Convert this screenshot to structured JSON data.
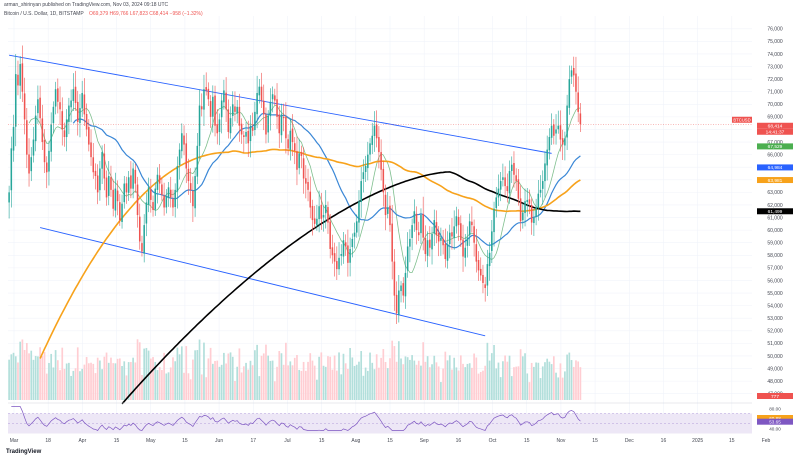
{
  "header": {
    "published": "arman_shirinyan published on TradingView.com, Nov 03, 2024 09:18 UTC",
    "symbol_line": "Bitcoin / U.S. Dollar, 1D, BITSTAMP",
    "ohlc": "O69,379 H69,766 L67,823 C68,414 −958 (−1.32%)"
  },
  "footer": {
    "brand": "TradingView"
  },
  "colors": {
    "up": "#26a69a",
    "down": "#ef5350",
    "channel": "#2962ff",
    "ma_black": "#000000",
    "ma_orange": "#f7a21b",
    "ma_blue": "#3a87d6",
    "ma_green": "#7fbf8e",
    "rsi": "#7e57c2",
    "vol_up": "#b2dfdb",
    "vol_down": "#ffcdd2"
  },
  "chart_data": {
    "type": "candlestick",
    "symbol": "BTCUSD",
    "price_axis_ticks": [
      47000,
      48000,
      49000,
      50000,
      51000,
      52000,
      53000,
      54000,
      55000,
      56000,
      57000,
      58000,
      59000,
      60000,
      61000,
      62000,
      63000,
      64000,
      65000,
      66000,
      67000,
      68000,
      69000,
      70000,
      71000,
      72000,
      73000,
      74000,
      75000,
      76000
    ],
    "ylim": [
      46500,
      76700
    ],
    "time_axis_labels": [
      "Mar",
      "18",
      "Apr",
      "15",
      "May",
      "15",
      "Jun",
      "17",
      "Jul",
      "15",
      "Aug",
      "15",
      "Sep",
      "16",
      "Oct",
      "15",
      "Nov",
      "15",
      "Dec",
      "16",
      "2025",
      "15",
      "Feb"
    ],
    "price_labels": [
      {
        "text": "BTCUSD",
        "value": 68414,
        "color": "#ef5350"
      },
      {
        "text": "68,414",
        "value": 68414,
        "color": "#ef5350"
      },
      {
        "text": "14:41:37",
        "value": 68414,
        "color": "#ef5350"
      },
      {
        "text": "67,529",
        "value": 67529,
        "color": "#4caf50"
      },
      {
        "text": "64,984",
        "value": 64984,
        "color": "#2962ff"
      },
      {
        "text": "63,981",
        "value": 63981,
        "color": "#f7a21b"
      },
      {
        "text": "61,499",
        "value": 61499,
        "color": "#000000"
      }
    ],
    "volume_label": "777",
    "rsi_axis_labels": [
      "80.00",
      "60.88",
      "53.65",
      "40.00"
    ],
    "closes": [
      63000,
      66500,
      68200,
      72400,
      71500,
      73200,
      71000,
      68800,
      66000,
      64500,
      65800,
      67200,
      69100,
      70400,
      68900,
      67000,
      65400,
      64600,
      66300,
      68400,
      69800,
      71200,
      70200,
      69600,
      68000,
      67400,
      68800,
      69900,
      70300,
      71200,
      70100,
      68600,
      69700,
      70900,
      69200,
      68000,
      66800,
      65800,
      64600,
      64300,
      63000,
      64900,
      66200,
      64100,
      62600,
      64300,
      63200,
      61700,
      63300,
      62300,
      60800,
      62100,
      63700,
      63000,
      64200,
      63300,
      64900,
      63700,
      61200,
      59100,
      58300,
      60400,
      62200,
      63400,
      62400,
      61600,
      63300,
      64400,
      63700,
      62800,
      61800,
      62700,
      63400,
      62600,
      61800,
      63200,
      65100,
      66400,
      67700,
      66800,
      64900,
      63900,
      63200,
      61900,
      64300,
      66700,
      69900,
      69600,
      71200,
      71100,
      70400,
      69000,
      70600,
      68300,
      67700,
      68800,
      70300,
      71100,
      69600,
      67800,
      68900,
      70000,
      69400,
      69800,
      68300,
      67600,
      67400,
      67800,
      66900,
      68300,
      67900,
      69400,
      70900,
      71400,
      70300,
      69200,
      67600,
      69100,
      70200,
      70800,
      70300,
      69000,
      67700,
      69200,
      68900,
      67300,
      66500,
      67900,
      67000,
      66300,
      64800,
      66100,
      65900,
      64100,
      63700,
      63200,
      61800,
      60800,
      60500,
      60900,
      61900,
      60900,
      61200,
      62000,
      60600,
      58500,
      58000,
      57500,
      56900,
      57800,
      58100,
      59200,
      58700,
      57400,
      58500,
      59300,
      59800,
      60700,
      62300,
      63900,
      64600,
      65100,
      66000,
      66900,
      67500,
      68300,
      67300,
      66200,
      64800,
      63000,
      61200,
      61800,
      60400,
      57500,
      54800,
      53400,
      55200,
      55600,
      54800,
      56600,
      58700,
      59300,
      60400,
      61500,
      60000,
      59600,
      61200,
      59400,
      58100,
      59200,
      58600,
      59700,
      60800,
      59600,
      59100,
      59400,
      58800,
      57700,
      58900,
      59800,
      59500,
      60300,
      61100,
      60400,
      59200,
      57900,
      58600,
      59400,
      60700,
      60400,
      59000,
      57500,
      56800,
      56400,
      55800,
      55400,
      57300,
      58200,
      59900,
      61700,
      62600,
      63300,
      63900,
      64200,
      63500,
      63100,
      64700,
      65200,
      64400,
      63900,
      62500,
      60700,
      61400,
      62300,
      62400,
      62100,
      60600,
      61000,
      61800,
      62900,
      63200,
      63900,
      65300,
      66400,
      67400,
      68300,
      67500,
      68000,
      68300,
      67200,
      66800,
      67300,
      69900,
      72000,
      72700,
      72300,
      71000,
      69400,
      68414
    ],
    "ma_black": {
      "name": "",
      "start": 51,
      "from": 46200,
      "to": 61499
    },
    "ma_orange": {
      "name": "",
      "start": 14,
      "from": 49800,
      "to": 63981
    },
    "channel_upper": {
      "start": [
        0,
        73900
      ],
      "end": [
        245,
        66100
      ]
    },
    "channel_lower": {
      "start": [
        14,
        60200
      ],
      "end": [
        215,
        51600
      ]
    }
  }
}
